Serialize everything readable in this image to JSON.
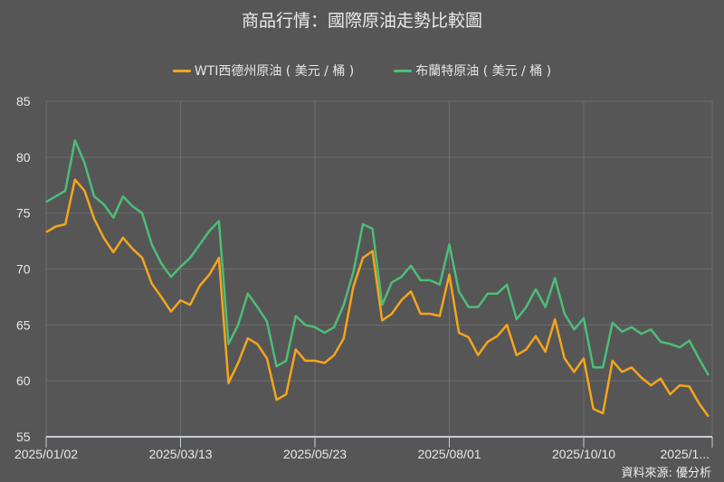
{
  "chart_data": {
    "type": "line",
    "title": "商品行情：國際原油走勢比較圖",
    "xlabel": "",
    "ylabel": "",
    "ylim": [
      55,
      85
    ],
    "yticks": [
      "55",
      "60",
      "65",
      "70",
      "75",
      "80",
      "85"
    ],
    "xtick_labels": [
      "2025/01/02",
      "2025/03/13",
      "2025/05/23",
      "2025/08/01",
      "2025/10/10",
      "2025/1..."
    ],
    "grid": true,
    "legend_position": "top",
    "x": [
      "2025-01-02",
      "2025-01-07",
      "2025-01-12",
      "2025-01-17",
      "2025-01-22",
      "2025-01-27",
      "2025-02-01",
      "2025-02-06",
      "2025-02-11",
      "2025-02-16",
      "2025-02-21",
      "2025-02-26",
      "2025-03-03",
      "2025-03-08",
      "2025-03-13",
      "2025-03-18",
      "2025-03-23",
      "2025-03-28",
      "2025-04-02",
      "2025-04-07",
      "2025-04-12",
      "2025-04-17",
      "2025-04-22",
      "2025-04-27",
      "2025-05-02",
      "2025-05-07",
      "2025-05-12",
      "2025-05-17",
      "2025-05-22",
      "2025-05-27",
      "2025-06-01",
      "2025-06-06",
      "2025-06-11",
      "2025-06-16",
      "2025-06-21",
      "2025-06-26",
      "2025-07-01",
      "2025-07-06",
      "2025-07-11",
      "2025-07-16",
      "2025-07-21",
      "2025-07-26",
      "2025-07-31",
      "2025-08-05",
      "2025-08-10",
      "2025-08-15",
      "2025-08-20",
      "2025-08-25",
      "2025-08-30",
      "2025-09-04",
      "2025-09-09",
      "2025-09-14",
      "2025-09-19",
      "2025-09-24",
      "2025-09-29",
      "2025-10-04",
      "2025-10-09",
      "2025-10-14",
      "2025-10-19",
      "2025-10-24",
      "2025-10-29",
      "2025-11-03",
      "2025-11-08",
      "2025-11-13",
      "2025-11-18",
      "2025-11-23",
      "2025-11-28",
      "2025-12-03",
      "2025-12-08",
      "2025-12-13"
    ],
    "series": [
      {
        "name": "WTI西德州原油 ( 美元 / 桶 )",
        "color": "#f5a51c",
        "values": [
          73.3,
          73.8,
          74.0,
          78.0,
          77.0,
          74.5,
          72.8,
          71.5,
          72.8,
          71.8,
          71.0,
          68.7,
          67.5,
          66.2,
          67.2,
          66.8,
          68.5,
          69.5,
          71.0,
          59.8,
          61.6,
          63.8,
          63.3,
          62.0,
          58.3,
          58.8,
          62.8,
          61.8,
          61.8,
          61.6,
          62.3,
          63.8,
          68.4,
          71.0,
          71.6,
          65.4,
          66.0,
          67.2,
          68.0,
          66.0,
          66.0,
          65.8,
          69.5,
          64.3,
          63.9,
          62.3,
          63.5,
          64.0,
          65.0,
          62.3,
          62.8,
          64.0,
          62.6,
          65.5,
          62.0,
          60.8,
          62.0,
          57.5,
          57.1,
          61.8,
          60.8,
          61.2,
          60.3,
          59.6,
          60.2,
          58.8,
          59.6,
          59.5,
          58.0,
          56.8
        ]
      },
      {
        "name": "布蘭特原油 ( 美元 / 桶 )",
        "color": "#4dbd78",
        "values": [
          76.0,
          76.5,
          77.0,
          81.5,
          79.5,
          76.5,
          75.8,
          74.6,
          76.5,
          75.6,
          75.0,
          72.2,
          70.5,
          69.3,
          70.2,
          71.0,
          72.2,
          73.4,
          74.3,
          63.3,
          65.0,
          67.8,
          66.6,
          65.3,
          61.3,
          61.8,
          65.8,
          65.0,
          64.8,
          64.3,
          64.8,
          66.8,
          69.7,
          74.0,
          73.6,
          66.8,
          68.8,
          69.3,
          70.3,
          69.0,
          69.0,
          68.6,
          72.2,
          68.0,
          66.6,
          66.6,
          67.8,
          67.8,
          68.6,
          65.5,
          66.6,
          68.2,
          66.6,
          69.2,
          66.0,
          64.6,
          65.6,
          61.2,
          61.2,
          65.2,
          64.4,
          64.8,
          64.2,
          64.6,
          63.5,
          63.3,
          63.0,
          63.6,
          62.0,
          60.5
        ]
      }
    ]
  },
  "source": "資料來源: 優分析",
  "colors": {
    "background": "#565656",
    "grid": "#6c6c6c",
    "axis": "#c8ccd4"
  }
}
